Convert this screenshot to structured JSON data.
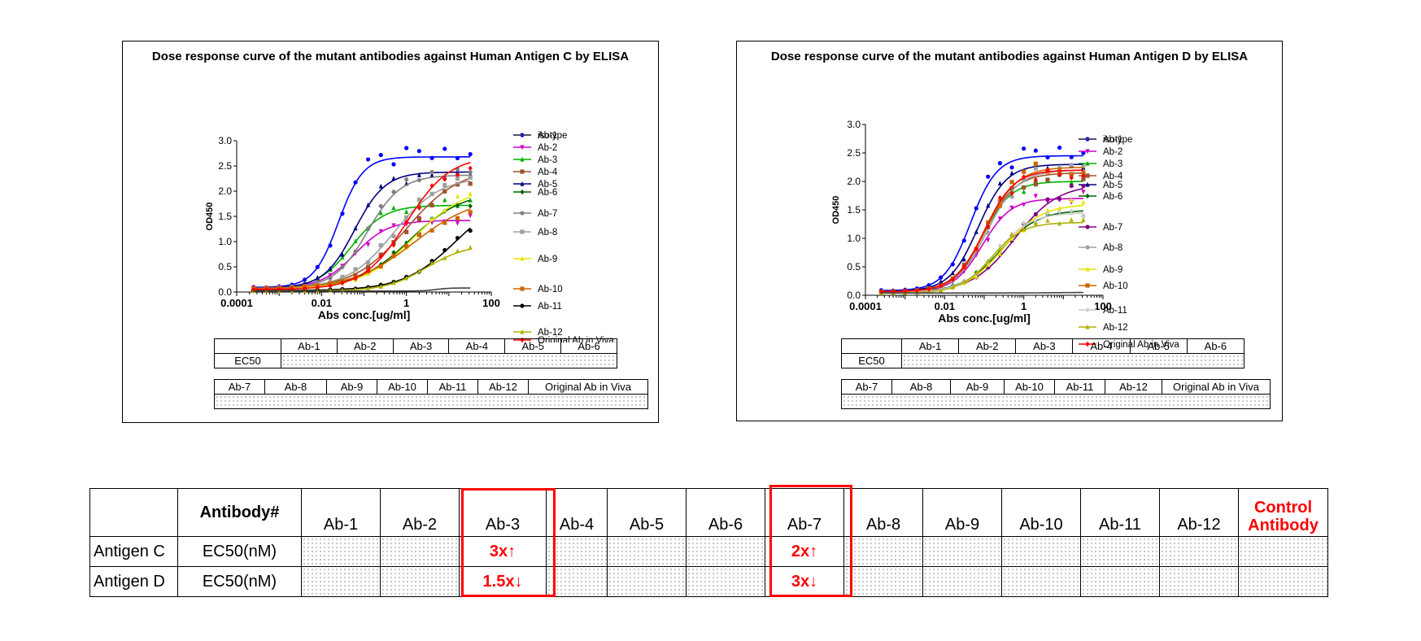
{
  "chart_data": [
    {
      "type": "line",
      "title": "Dose response curve of the mutant antibodies against Human Antigen C by ELISA",
      "xlabel": "Abs conc.[ug/ml]",
      "ylabel": "OD450",
      "xscale": "log",
      "xlim": [
        0.0001,
        100
      ],
      "ylim": [
        0,
        3.0
      ],
      "xticks": [
        0.0001,
        0.01,
        1,
        100
      ],
      "xtick_labels": [
        "0.0001",
        "0.01",
        "1",
        "100"
      ],
      "yticks": [
        0,
        0.5,
        1.0,
        1.5,
        2.0,
        2.5,
        3.0
      ],
      "ytick_labels": [
        "0.0",
        "0.5",
        "1.0",
        "1.5",
        "2.0",
        "2.5",
        "3.0"
      ],
      "legend_position": "right",
      "x": [
        0.00025,
        0.0005,
        0.001,
        0.002,
        0.004,
        0.008,
        0.016,
        0.031,
        0.063,
        0.125,
        0.25,
        0.5,
        1,
        2,
        4,
        8,
        16,
        32
      ],
      "series": [
        {
          "name": "Ab-1",
          "color": "#0000ff",
          "marker": "circle",
          "bottom": 0.09,
          "top": 2.68,
          "ec50": 0.025,
          "hill": 1.5
        },
        {
          "name": "Ab-2",
          "color": "#cc00cc",
          "marker": "triangle-down",
          "bottom": 0.08,
          "top": 1.42,
          "ec50": 0.06,
          "hill": 1.1
        },
        {
          "name": "Ab-3",
          "color": "#00b000",
          "marker": "triangle-up",
          "bottom": 0.07,
          "top": 1.72,
          "ec50": 0.05,
          "hill": 1.1
        },
        {
          "name": "Ab-4",
          "color": "#a0522d",
          "marker": "square",
          "bottom": 0.06,
          "top": 2.45,
          "ec50": 1.0,
          "hill": 0.7
        },
        {
          "name": "Ab-5",
          "color": "#000080",
          "marker": "triangle-up",
          "bottom": 0.08,
          "top": 2.38,
          "ec50": 0.06,
          "hill": 1.2
        },
        {
          "name": "Ab-6",
          "color": "#006400",
          "marker": "diamond",
          "bottom": 0.06,
          "top": 2.0,
          "ec50": 1.2,
          "hill": 0.7
        },
        {
          "name": "Ab-7",
          "color": "#808080",
          "marker": "circle",
          "bottom": 0.07,
          "top": 2.32,
          "ec50": 0.12,
          "hill": 1.1
        },
        {
          "name": "Ab-8",
          "color": "#a0a0a0",
          "marker": "square",
          "bottom": 0.07,
          "top": 2.28,
          "ec50": 0.5,
          "hill": 0.8
        },
        {
          "name": "Ab-9",
          "color": "#e6e600",
          "marker": "triangle-up",
          "bottom": 0.06,
          "top": 2.1,
          "ec50": 1.5,
          "hill": 0.7
        },
        {
          "name": "Ab-10",
          "color": "#cc6600",
          "marker": "square",
          "bottom": 0.06,
          "top": 1.9,
          "ec50": 1.5,
          "hill": 0.6
        },
        {
          "name": "Ab-11",
          "color": "#000000",
          "marker": "circle",
          "bottom": 0.03,
          "top": 2.0,
          "ec50": 15,
          "hill": 0.7
        },
        {
          "name": "Ab-12",
          "color": "#b0b000",
          "marker": "triangle-up",
          "bottom": 0.02,
          "top": 0.95,
          "ec50": 3,
          "hill": 0.9
        },
        {
          "name": "Original Ab in Viva",
          "color": "#ff0000",
          "marker": "diamond",
          "bottom": 0.05,
          "top": 2.7,
          "ec50": 1.0,
          "hill": 0.85
        },
        {
          "name": "isotype",
          "color": "#444444",
          "marker": "none",
          "bottom": 0.02,
          "top": 0.08,
          "ec50": 5,
          "hill": 3
        }
      ]
    },
    {
      "type": "line",
      "title": "Dose response curve of the mutant antibodies against Human Antigen D by ELISA",
      "xlabel": "Abs conc.[ug/ml]",
      "ylabel": "OD450",
      "xscale": "log",
      "xlim": [
        0.0001,
        100
      ],
      "ylim": [
        0,
        3.0
      ],
      "xticks": [
        0.0001,
        0.01,
        1,
        100
      ],
      "xtick_labels": [
        "0.0001",
        "0.01",
        "1",
        "100"
      ],
      "yticks": [
        0,
        0.5,
        1.0,
        1.5,
        2.0,
        2.5,
        3.0
      ],
      "ytick_labels": [
        "0.0",
        "0.5",
        "1.0",
        "1.5",
        "2.0",
        "2.5",
        "3.0"
      ],
      "legend_position": "right",
      "x": [
        0.00025,
        0.0005,
        0.001,
        0.002,
        0.004,
        0.008,
        0.016,
        0.031,
        0.063,
        0.125,
        0.25,
        0.5,
        1,
        2,
        4,
        8,
        16,
        32
      ],
      "series": [
        {
          "name": "Ab-1",
          "color": "#0000ff",
          "marker": "circle",
          "bottom": 0.08,
          "top": 2.45,
          "ec50": 0.045,
          "hill": 1.3
        },
        {
          "name": "Ab-2",
          "color": "#cc00cc",
          "marker": "triangle-down",
          "bottom": 0.06,
          "top": 1.7,
          "ec50": 0.09,
          "hill": 1.2
        },
        {
          "name": "Ab-3",
          "color": "#00b000",
          "marker": "triangle-up",
          "bottom": 0.06,
          "top": 2.0,
          "ec50": 0.09,
          "hill": 1.2
        },
        {
          "name": "Ab-4",
          "color": "#a0522d",
          "marker": "square",
          "bottom": 0.06,
          "top": 2.15,
          "ec50": 0.1,
          "hill": 1.1
        },
        {
          "name": "Ab-5",
          "color": "#000080",
          "marker": "triangle-up",
          "bottom": 0.07,
          "top": 2.3,
          "ec50": 0.07,
          "hill": 1.2
        },
        {
          "name": "Ab-6",
          "color": "#006400",
          "marker": "diamond",
          "bottom": 0.05,
          "top": 1.5,
          "ec50": 0.25,
          "hill": 0.9
        },
        {
          "name": "Ab-7",
          "color": "#800080",
          "marker": "circle",
          "bottom": 0.05,
          "top": 1.95,
          "ec50": 0.6,
          "hill": 0.8
        },
        {
          "name": "Ab-8",
          "color": "#a0a0a0",
          "marker": "circle",
          "bottom": 0.06,
          "top": 2.2,
          "ec50": 0.12,
          "hill": 1.1
        },
        {
          "name": "Ab-9",
          "color": "#e6e600",
          "marker": "triangle-up",
          "bottom": 0.04,
          "top": 1.6,
          "ec50": 0.3,
          "hill": 0.9
        },
        {
          "name": "Ab-10",
          "color": "#cc6600",
          "marker": "square",
          "bottom": 0.06,
          "top": 2.25,
          "ec50": 0.11,
          "hill": 1.1
        },
        {
          "name": "Ab-11",
          "color": "#cccccc",
          "marker": "diamond",
          "bottom": 0.05,
          "top": 1.45,
          "ec50": 0.2,
          "hill": 1.0
        },
        {
          "name": "Ab-12",
          "color": "#b0b000",
          "marker": "triangle-up",
          "bottom": 0.04,
          "top": 1.28,
          "ec50": 0.15,
          "hill": 1.1
        },
        {
          "name": "Original Ab in Viva",
          "color": "#ff0000",
          "marker": "diamond",
          "bottom": 0.06,
          "top": 2.2,
          "ec50": 0.1,
          "hill": 1.15
        },
        {
          "name": "isotype",
          "color": "#444444",
          "marker": "none",
          "bottom": 0.04,
          "top": 0.05,
          "ec50": 5,
          "hill": 1
        }
      ]
    }
  ],
  "ec50_tables": [
    {
      "row1_headers": [
        "",
        "Ab-1",
        "Ab-2",
        "Ab-3",
        "Ab-4",
        "Ab-5",
        "Ab-6"
      ],
      "row1_label": "EC50",
      "row2_headers": [
        "Ab-7",
        "Ab-8",
        "Ab-9",
        "Ab-10",
        "Ab-11",
        "Ab-12",
        "Original Ab in Viva"
      ]
    },
    {
      "row1_headers": [
        "",
        "Ab-1",
        "Ab-2",
        "Ab-3",
        "Ab-4",
        "Ab-5",
        "Ab-6"
      ],
      "row1_label": "EC50",
      "row2_headers": [
        "Ab-7",
        "Ab-8",
        "Ab-9",
        "Ab-10",
        "Ab-11",
        "Ab-12",
        "Original Ab in Viva"
      ]
    }
  ],
  "summary_table": {
    "header_label": "Antibody#",
    "columns": [
      "Ab-1",
      "Ab-2",
      "Ab-3",
      "Ab-4",
      "Ab-5",
      "Ab-6",
      "Ab-7",
      "Ab-8",
      "Ab-9",
      "Ab-10",
      "Ab-11",
      "Ab-12"
    ],
    "control_label_line1": "Control",
    "control_label_line2": "Antibody",
    "rows": [
      {
        "antigen": "Antigen C",
        "metric": "EC50(nM)",
        "ab3": "3x↑",
        "ab7": "2x↑"
      },
      {
        "antigen": "Antigen D",
        "metric": "EC50(nM)",
        "ab3": "1.5x↓",
        "ab7": "3x↓"
      }
    ],
    "highlight_color": "#ff0000"
  }
}
